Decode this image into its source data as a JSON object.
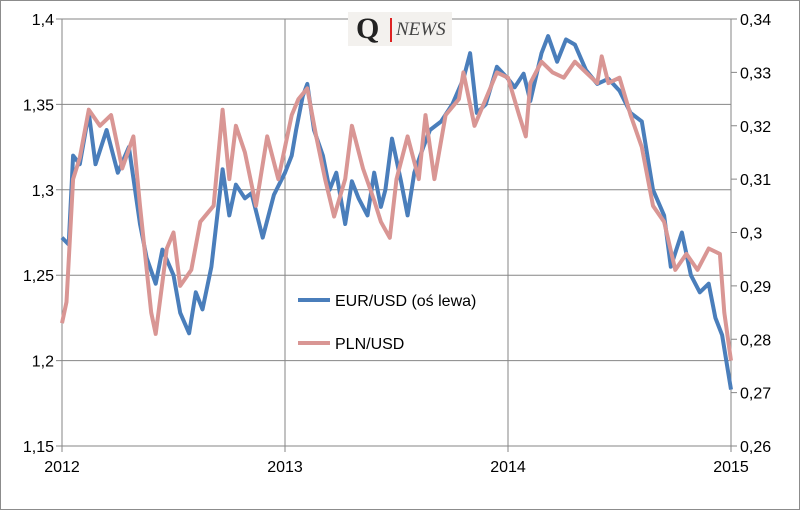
{
  "logo": {
    "q": "Q",
    "news": "NEWS"
  },
  "chart_data": {
    "type": "line",
    "title": "",
    "x_ticks": [
      2012,
      2013,
      2014,
      2015
    ],
    "x_range": [
      2012,
      2015
    ],
    "y_left": {
      "ticks": [
        "1,4",
        "1,35",
        "1,3",
        "1,25",
        "1,2",
        "1,15"
      ],
      "range": [
        1.15,
        1.4
      ]
    },
    "y_right": {
      "ticks": [
        "0,34",
        "0,33",
        "0,32",
        "0,31",
        "0,3",
        "0,29",
        "0,28",
        "0,27",
        "0,26"
      ],
      "range": [
        0.26,
        0.34
      ]
    },
    "grid": true,
    "legend_placement": "center",
    "series": [
      {
        "name": "EUR/USD (oś lewa)",
        "axis": "left",
        "color": "#4a7ebb",
        "x": [
          2012.0,
          2012.03,
          2012.05,
          2012.08,
          2012.12,
          2012.15,
          2012.2,
          2012.25,
          2012.3,
          2012.35,
          2012.38,
          2012.42,
          2012.45,
          2012.5,
          2012.53,
          2012.57,
          2012.6,
          2012.63,
          2012.67,
          2012.72,
          2012.75,
          2012.78,
          2012.82,
          2012.85,
          2012.9,
          2012.95,
          2013.0,
          2013.03,
          2013.05,
          2013.08,
          2013.1,
          2013.13,
          2013.17,
          2013.2,
          2013.23,
          2013.27,
          2013.3,
          2013.33,
          2013.37,
          2013.4,
          2013.43,
          2013.45,
          2013.48,
          2013.52,
          2013.55,
          2013.58,
          2013.62,
          2013.65,
          2013.7,
          2013.75,
          2013.8,
          2013.83,
          2013.86,
          2013.9,
          2013.95,
          2014.0,
          2014.03,
          2014.07,
          2014.1,
          2014.15,
          2014.18,
          2014.22,
          2014.26,
          2014.3,
          2014.35,
          2014.4,
          2014.45,
          2014.5,
          2014.55,
          2014.6,
          2014.65,
          2014.7,
          2014.73,
          2014.78,
          2014.82,
          2014.86,
          2014.9,
          2014.93,
          2014.96,
          2015.0
        ],
        "y": [
          1.272,
          1.268,
          1.32,
          1.315,
          1.345,
          1.315,
          1.335,
          1.31,
          1.325,
          1.28,
          1.26,
          1.245,
          1.265,
          1.25,
          1.228,
          1.216,
          1.24,
          1.23,
          1.255,
          1.312,
          1.285,
          1.303,
          1.295,
          1.298,
          1.272,
          1.297,
          1.31,
          1.32,
          1.335,
          1.355,
          1.362,
          1.335,
          1.32,
          1.3,
          1.31,
          1.28,
          1.305,
          1.295,
          1.285,
          1.31,
          1.29,
          1.3,
          1.33,
          1.305,
          1.285,
          1.31,
          1.325,
          1.335,
          1.34,
          1.35,
          1.365,
          1.38,
          1.345,
          1.35,
          1.372,
          1.365,
          1.36,
          1.368,
          1.352,
          1.38,
          1.39,
          1.375,
          1.388,
          1.385,
          1.37,
          1.362,
          1.365,
          1.358,
          1.345,
          1.34,
          1.3,
          1.285,
          1.255,
          1.275,
          1.25,
          1.24,
          1.245,
          1.225,
          1.215,
          1.183
        ]
      },
      {
        "name": "PLN/USD",
        "axis": "right",
        "color": "#d99694",
        "x": [
          2012.0,
          2012.02,
          2012.05,
          2012.08,
          2012.12,
          2012.17,
          2012.22,
          2012.27,
          2012.32,
          2012.35,
          2012.4,
          2012.42,
          2012.47,
          2012.5,
          2012.53,
          2012.58,
          2012.62,
          2012.68,
          2012.72,
          2012.75,
          2012.78,
          2012.82,
          2012.87,
          2012.92,
          2012.97,
          2013.03,
          2013.06,
          2013.1,
          2013.14,
          2013.18,
          2013.22,
          2013.27,
          2013.3,
          2013.35,
          2013.4,
          2013.43,
          2013.47,
          2013.5,
          2013.55,
          2013.6,
          2013.63,
          2013.67,
          2013.72,
          2013.78,
          2013.8,
          2013.85,
          2013.9,
          2013.95,
          2014.0,
          2014.05,
          2014.08,
          2014.1,
          2014.15,
          2014.2,
          2014.25,
          2014.3,
          2014.35,
          2014.4,
          2014.42,
          2014.45,
          2014.5,
          2014.55,
          2014.6,
          2014.65,
          2014.7,
          2014.75,
          2014.8,
          2014.85,
          2014.9,
          2014.95,
          2014.97,
          2015.0
        ],
        "y": [
          0.283,
          0.287,
          0.31,
          0.314,
          0.323,
          0.32,
          0.322,
          0.312,
          0.318,
          0.305,
          0.285,
          0.281,
          0.297,
          0.3,
          0.29,
          0.293,
          0.302,
          0.305,
          0.323,
          0.31,
          0.32,
          0.315,
          0.305,
          0.318,
          0.31,
          0.322,
          0.325,
          0.327,
          0.318,
          0.31,
          0.303,
          0.31,
          0.32,
          0.312,
          0.306,
          0.302,
          0.299,
          0.31,
          0.318,
          0.31,
          0.322,
          0.31,
          0.322,
          0.325,
          0.33,
          0.32,
          0.325,
          0.33,
          0.329,
          0.322,
          0.318,
          0.328,
          0.332,
          0.33,
          0.329,
          0.332,
          0.33,
          0.328,
          0.333,
          0.328,
          0.329,
          0.322,
          0.316,
          0.305,
          0.302,
          0.293,
          0.296,
          0.293,
          0.297,
          0.296,
          0.285,
          0.276
        ]
      }
    ]
  }
}
